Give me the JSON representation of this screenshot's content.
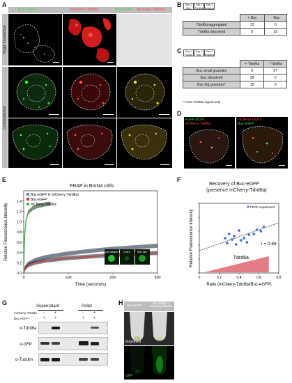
{
  "panels": {
    "a": "A",
    "b": "B",
    "c": "C",
    "d": "D",
    "e": "E",
    "f": "F",
    "g": "G",
    "h": "H"
  },
  "panel_a": {
    "col_labels": [
      "Buc-eGFP",
      "mCherry-Tdrd6a",
      "Buc-eGFP",
      "mCherry-Tdrd6a"
    ],
    "row_labels": [
      "Single transfection",
      "Co-transfection"
    ]
  },
  "panel_b": {
    "days": [
      "Day 1",
      "Day 2",
      "Day 3"
    ],
    "day_subs": [
      "Buc",
      "Tdrd6a",
      "Imaging"
    ],
    "headers": [
      "+ Buc",
      "- Buc"
    ],
    "rows": [
      {
        "label": "Tdrd6a aggregated",
        "values": [
          "23",
          "0"
        ]
      },
      {
        "label": "Tdrd6a dissolved",
        "values": [
          "0",
          "32"
        ]
      }
    ]
  },
  "panel_c": {
    "days": [
      "Day 1",
      "Day 2",
      "Day 3"
    ],
    "day_subs": [
      "Tdrd6a",
      "Buc",
      "Imaging"
    ],
    "headers": [
      "+ Tdrd6a",
      "- Tdrd6a"
    ],
    "rows": [
      {
        "label": "Buc small granules",
        "values": [
          "0",
          "27"
        ]
      },
      {
        "label": "Buc dissolved",
        "values": [
          "28",
          "0"
        ]
      },
      {
        "label": "Buc big granules*",
        "values": [
          "18",
          "0"
        ]
      }
    ],
    "footnote": "* Faint Tdrd6a signal only"
  },
  "panel_d": {
    "left_labels": [
      "eGFP-DCP1",
      "mCherry-Tdrd6a"
    ],
    "right_labels": [
      "mCherry-DCP1",
      "Buc-eGFP"
    ]
  },
  "panel_e": {
    "title": "FRAP in BmN4 cells",
    "inset_labels": [
      "pre-bleach",
      "0 sec",
      "300 sec"
    ]
  },
  "panel_f": {
    "title_line1": "Recovery of Buc-eGFP",
    "title_line2": "(presence mCherry-Tdrd6a)",
    "legend": "FRAP experiment",
    "r_label": "r = 0.69",
    "wedge_label": "Tdrd6a"
  },
  "panel_g": {
    "row_labels": [
      "mCherry-Tdrd6a",
      "Buc-eGFP"
    ],
    "plus_minus": [
      [
        "-",
        "+",
        "-",
        "+"
      ],
      [
        "+",
        "+",
        "+",
        "+"
      ]
    ],
    "groups": [
      "Supernatant",
      "Pellet"
    ],
    "bands": [
      "α-Tdrd6a",
      "α-GFP",
      "α-Tubulin"
    ]
  },
  "panel_h": {
    "tubes": [
      "Buc-eGFP",
      "Buc-eGFP + mCherry-Tdrd6a"
    ],
    "rows": [
      "Brightfield",
      "GFP"
    ]
  },
  "chart_data": [
    {
      "type": "line",
      "title": "FRAP in BmN4 cells",
      "xlabel": "Time (seconds)",
      "ylabel": "Relative Fluorescence Intensity",
      "xlim": [
        0,
        300
      ],
      "ylim": [
        0,
        1.6
      ],
      "xticks": [
        0,
        100,
        200,
        300
      ],
      "yticks": [
        0,
        0.2,
        0.4,
        0.6,
        0.8,
        1.0,
        1.2,
        1.4
      ],
      "legend_position": "top-left",
      "series": [
        {
          "name": "Buc-eGFP (+ mCherry-Tdrd6a)",
          "color": "#5b82b8",
          "x": [
            0,
            3,
            10,
            25,
            50,
            100,
            150,
            200,
            250,
            300
          ],
          "y": [
            0.0,
            0.1,
            0.18,
            0.25,
            0.31,
            0.38,
            0.43,
            0.47,
            0.5,
            0.53
          ]
        },
        {
          "name": "Buc-eGFP",
          "color": "#c9333c",
          "x": [
            0,
            3,
            10,
            25,
            50,
            100,
            150,
            200,
            250,
            300
          ],
          "y": [
            0.0,
            0.09,
            0.15,
            0.2,
            0.24,
            0.29,
            0.32,
            0.35,
            0.37,
            0.39
          ]
        },
        {
          "name": "mCherry-Tdrd6a",
          "color": "#49b24e",
          "x": [
            0,
            2,
            5,
            10,
            20,
            30,
            40,
            50,
            60
          ],
          "y": [
            0.0,
            0.7,
            1.02,
            1.18,
            1.26,
            1.3,
            1.32,
            1.34,
            1.35
          ]
        }
      ]
    },
    {
      "type": "scatter",
      "title": "Recovery of Buc-eGFP (presence mCherry-Tdrd6a)",
      "xlabel": "Ratio (mCherry-Tdrd6a/Buc-eGFP)",
      "ylabel": "Relative Fluorescence Intensity",
      "xlim": [
        0,
        0.8
      ],
      "ylim": [
        0,
        1.0
      ],
      "xticks": [
        0,
        0.2,
        0.4,
        0.6,
        0.8
      ],
      "yticks": [
        0,
        0.2,
        0.4,
        0.6,
        0.8,
        1.0
      ],
      "legend_position": "top-right",
      "series": [
        {
          "name": "FRAP experiment",
          "color": "#4a73d1",
          "points": [
            [
              0.26,
              0.5
            ],
            [
              0.28,
              0.43
            ],
            [
              0.3,
              0.56
            ],
            [
              0.33,
              0.48
            ],
            [
              0.35,
              0.53
            ],
            [
              0.37,
              0.41
            ],
            [
              0.4,
              0.61
            ],
            [
              0.42,
              0.47
            ],
            [
              0.45,
              0.5
            ],
            [
              0.48,
              0.44
            ],
            [
              0.5,
              0.55
            ],
            [
              0.55,
              0.56
            ],
            [
              0.58,
              0.62
            ],
            [
              0.62,
              0.6
            ],
            [
              0.65,
              0.66
            ]
          ]
        }
      ],
      "trendline": {
        "x": [
          0.0,
          0.8
        ],
        "y": [
          0.32,
          0.72
        ]
      },
      "annotation": "r = 0.69"
    }
  ]
}
